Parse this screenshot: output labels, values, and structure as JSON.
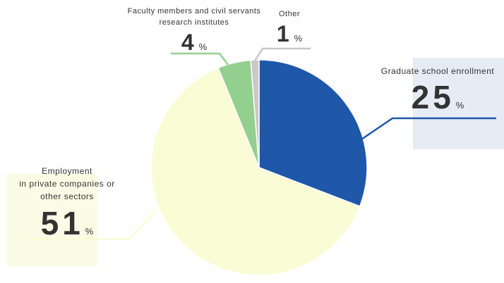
{
  "colors": {
    "graduate": "#1f57a9",
    "employment": "#fafcd5",
    "faculty": "#93d08f",
    "other": "#c8c8c8"
  },
  "chart_data": {
    "type": "pie",
    "slices": [
      {
        "label": "Graduate school enrollment",
        "value": 25,
        "unit": "%",
        "color": "#1f57a9"
      },
      {
        "label": "Employment in private companies or other sectors",
        "value": 51,
        "unit": "%",
        "color": "#fafcd5"
      },
      {
        "label": "Faculty members and civil servants research institutes",
        "value": 4,
        "unit": "%",
        "color": "#93d08f"
      },
      {
        "label": "Other",
        "value": 1,
        "unit": "%",
        "color": "#c8c8c8"
      }
    ]
  },
  "labels": {
    "graduate": {
      "name": "Graduate school enrollment",
      "value": "25",
      "unit": "%"
    },
    "faculty": {
      "line1": "Faculty members and civil servants",
      "line2": "research institutes",
      "value": "4",
      "unit": "%"
    },
    "other": {
      "name": "Other",
      "value": "1",
      "unit": "%"
    },
    "employment": {
      "line1": "Employment",
      "line2": "in private companies or",
      "line3": "other sectors",
      "value": "51",
      "unit": "%"
    }
  }
}
